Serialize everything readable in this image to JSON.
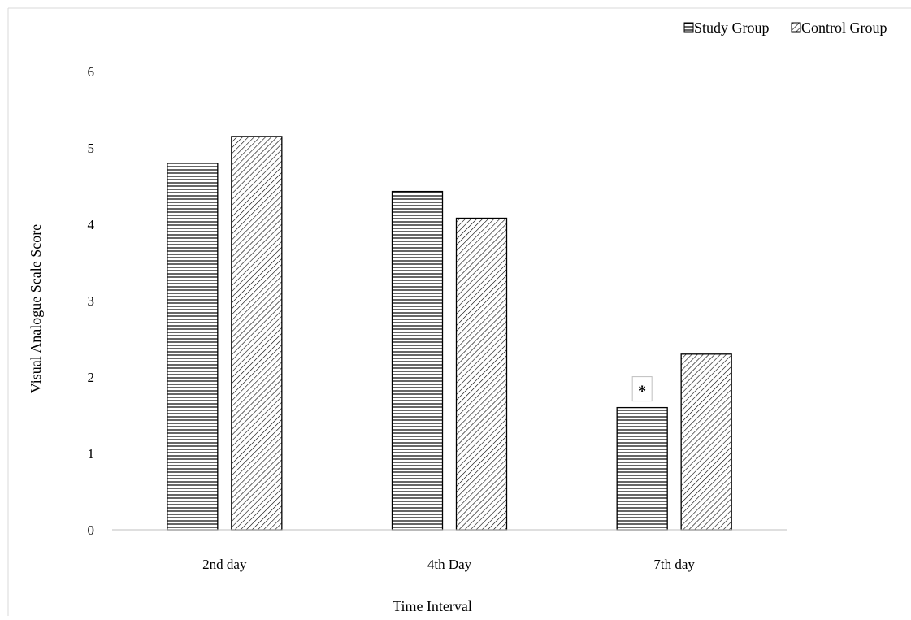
{
  "chart_data": {
    "type": "bar",
    "title": "",
    "xlabel": "Time Interval",
    "ylabel": "Visual Analogue Scale Score",
    "categories": [
      "2nd day",
      "4th Day",
      "7th day"
    ],
    "series": [
      {
        "name": "Study Group",
        "values": [
          4.8,
          4.43,
          1.6
        ],
        "pattern": "horizontal-lines"
      },
      {
        "name": "Control Group",
        "values": [
          5.15,
          4.08,
          2.3
        ],
        "pattern": "diagonal-lines"
      }
    ],
    "ylim": [
      0,
      6
    ],
    "yticks": [
      0,
      1,
      2,
      3,
      4,
      5,
      6
    ],
    "grid": false,
    "legend_position": "top-right",
    "annotations": [
      {
        "text": "*",
        "category": "7th day",
        "series": "Study Group"
      }
    ],
    "colors": {
      "bar_fill": "#ffffff",
      "pattern": "#000000",
      "axis": "#bfbfbf"
    }
  }
}
